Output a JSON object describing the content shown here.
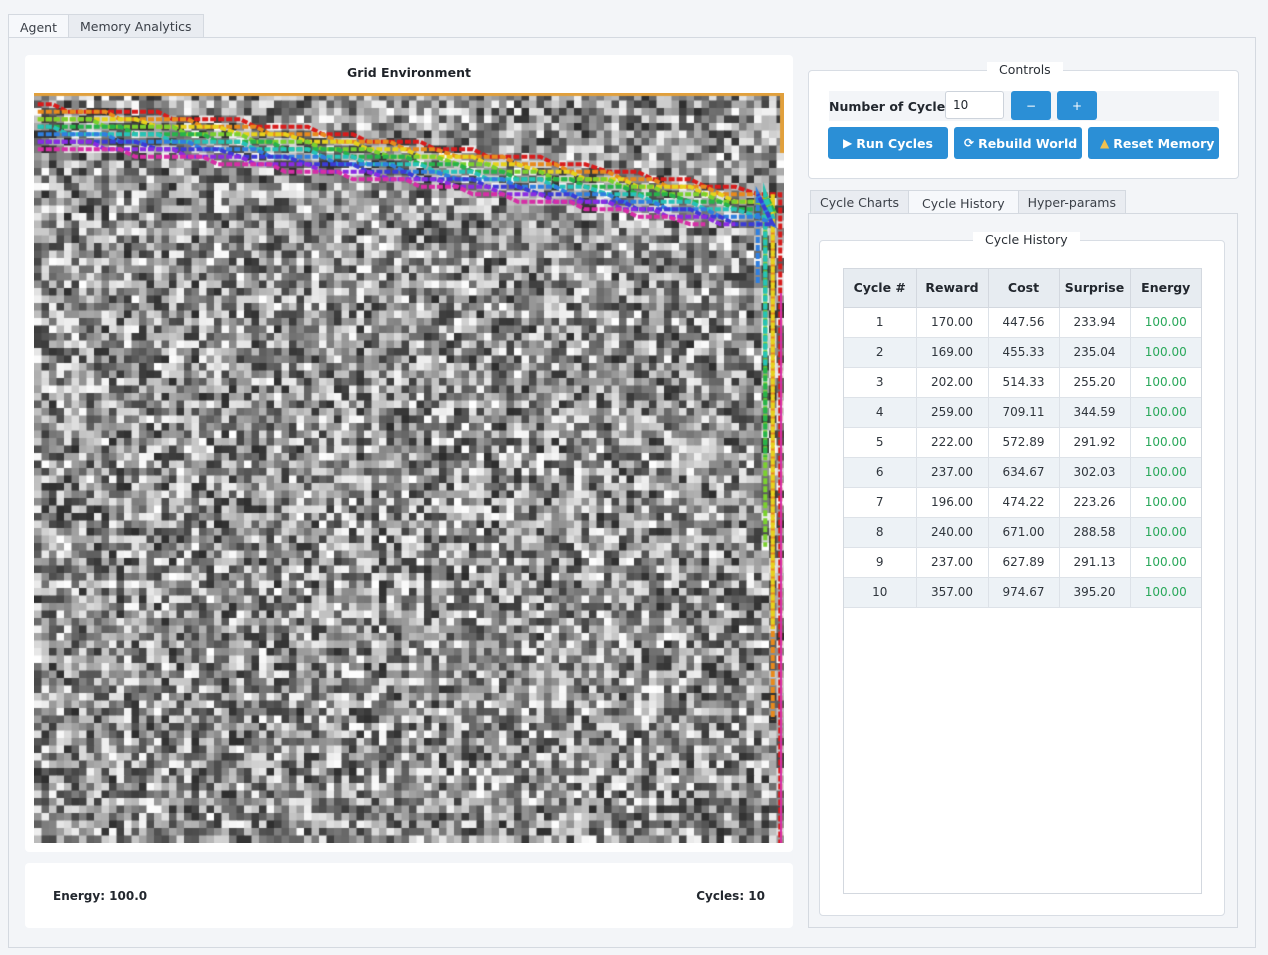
{
  "window": {
    "tabs": [
      {
        "label": "Agent",
        "active": true
      },
      {
        "label": "Memory Analytics",
        "active": false
      }
    ]
  },
  "grid": {
    "title": "Grid Environment",
    "seed": 7,
    "colors": {
      "frame_top": "#e1a03c",
      "path_palette": [
        "#d81b1b",
        "#e88a1c",
        "#e8d21c",
        "#7bd12f",
        "#27b34a",
        "#27c2b8",
        "#2f7fe0",
        "#3b3bd6",
        "#8a2be2",
        "#d62ea6"
      ]
    }
  },
  "status": {
    "energy": "Energy: 100.0",
    "cycles": "Cycles: 10"
  },
  "controls": {
    "title": "Controls",
    "cycles_label": "Number of Cycles:",
    "cycles_value": "10",
    "decrement": "−",
    "increment": "+",
    "run_label": "Run Cycles",
    "rebuild_label": "Rebuild World",
    "reset_label": "Reset Memory",
    "accent": "#2b8fd6"
  },
  "sub_tabs": [
    {
      "label": "Cycle Charts",
      "active": false
    },
    {
      "label": "Cycle History",
      "active": true
    },
    {
      "label": "Hyper-params",
      "active": false
    }
  ],
  "history": {
    "title": "Cycle History",
    "columns": [
      "Cycle #",
      "Reward",
      "Cost",
      "Surprise",
      "Energy"
    ],
    "rows": [
      [
        "1",
        "170.00",
        "447.56",
        "233.94",
        "100.00"
      ],
      [
        "2",
        "169.00",
        "455.33",
        "235.04",
        "100.00"
      ],
      [
        "3",
        "202.00",
        "514.33",
        "255.20",
        "100.00"
      ],
      [
        "4",
        "259.00",
        "709.11",
        "344.59",
        "100.00"
      ],
      [
        "5",
        "222.00",
        "572.89",
        "291.92",
        "100.00"
      ],
      [
        "6",
        "237.00",
        "634.67",
        "302.03",
        "100.00"
      ],
      [
        "7",
        "196.00",
        "474.22",
        "223.26",
        "100.00"
      ],
      [
        "8",
        "240.00",
        "671.00",
        "288.58",
        "100.00"
      ],
      [
        "9",
        "237.00",
        "627.89",
        "291.13",
        "100.00"
      ],
      [
        "10",
        "357.00",
        "974.67",
        "395.20",
        "100.00"
      ]
    ],
    "energy_color": "#29a85a"
  }
}
